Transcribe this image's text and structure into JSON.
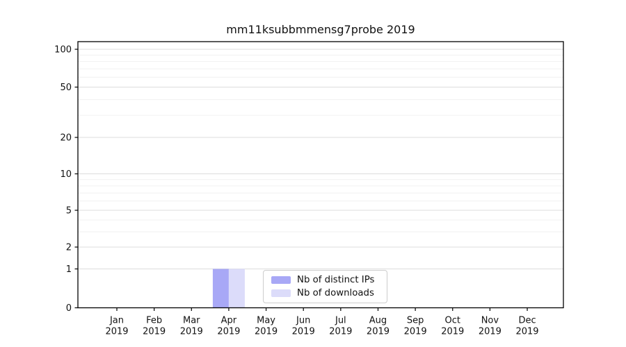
{
  "chart_data": {
    "type": "bar",
    "title": "mm11ksubbmmensg7probe 2019",
    "categories": [
      "Jan",
      "Feb",
      "Mar",
      "Apr",
      "May",
      "Jun",
      "Jul",
      "Aug",
      "Sep",
      "Oct",
      "Nov",
      "Dec"
    ],
    "x_year_label": "2019",
    "series": [
      {
        "name": "Nb of distinct IPs",
        "color": "#a8a8f6",
        "values": [
          0,
          0,
          0,
          1,
          0,
          0,
          0,
          0,
          0,
          0,
          0,
          0
        ]
      },
      {
        "name": "Nb of downloads",
        "color": "#dcdcfa",
        "values": [
          0,
          0,
          0,
          1,
          0,
          0,
          0,
          0,
          0,
          0,
          0,
          0
        ]
      }
    ],
    "xlabel": "",
    "ylabel": "",
    "yaxis": {
      "scale": "log-like (symlog)",
      "ticks": [
        0,
        1,
        2,
        5,
        10,
        20,
        50,
        100
      ],
      "minor_ticks": [
        3,
        4,
        6,
        7,
        8,
        9,
        30,
        40,
        60,
        70,
        80,
        90
      ],
      "max": 115
    },
    "grid": "horizontal only",
    "legend_position": "inside bottom-center",
    "colors": {
      "background": "#ffffff",
      "spine": "#000000",
      "major_grid": "#dcdcdc",
      "minor_grid": "#f1f1f1"
    }
  }
}
